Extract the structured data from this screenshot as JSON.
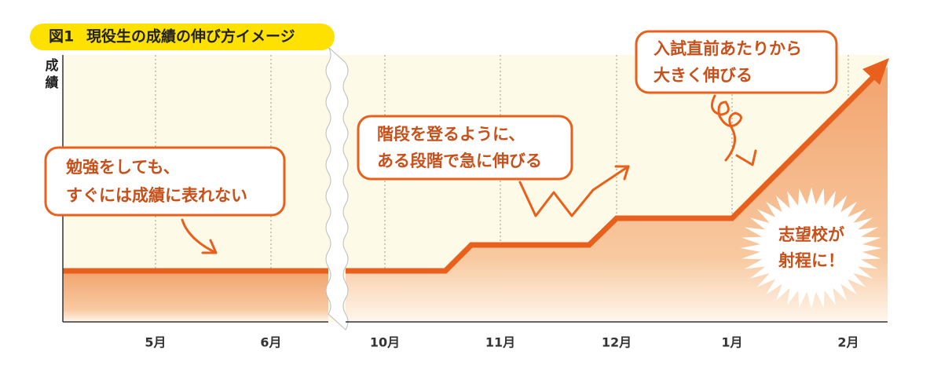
{
  "figure_label": "図1",
  "title": "現役生の成績の伸び方イメージ",
  "y_label": [
    "成",
    "績"
  ],
  "x_labels": [
    "5月",
    "6月",
    "10月",
    "11月",
    "12月",
    "1月",
    "2月"
  ],
  "callouts": [
    {
      "lines": [
        "勉強をしても、",
        "すぐには成績に表れない"
      ]
    },
    {
      "lines": [
        "階段を登るように、",
        "ある段階で急に伸びる"
      ]
    },
    {
      "lines": [
        "入試直前あたりから",
        "大きく伸びる"
      ]
    }
  ],
  "burst": {
    "lines": [
      "志望校が",
      "射程に！"
    ]
  }
}
